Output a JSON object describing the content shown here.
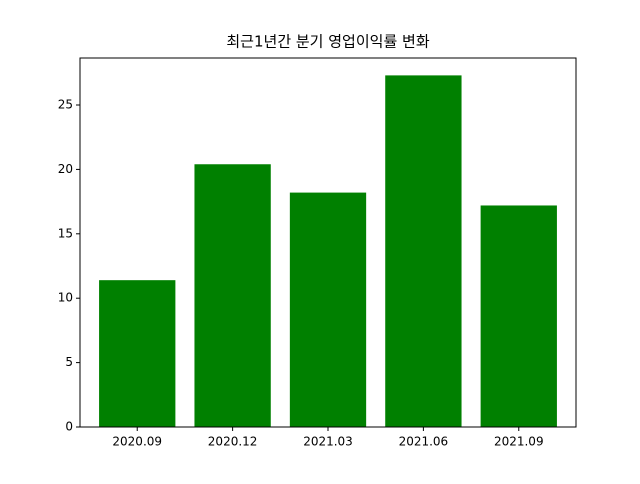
{
  "chart_data": {
    "type": "bar",
    "title": "최근1년간 분기 영업이익률 변화",
    "categories": [
      "2020.09",
      "2020.12",
      "2021.03",
      "2021.06",
      "2021.09"
    ],
    "values": [
      11.4,
      20.4,
      18.2,
      27.3,
      17.2
    ],
    "color": "#008000",
    "ylim": [
      0,
      28.65
    ],
    "yticks": [
      0,
      5,
      10,
      15,
      20,
      25
    ],
    "grid": false
  }
}
